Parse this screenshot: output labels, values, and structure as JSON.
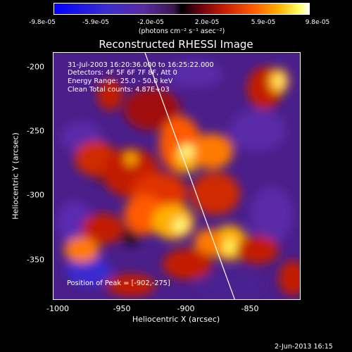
{
  "colorbar": {
    "ticks": [
      "-9.8e-05",
      "-5.9e-05",
      "-2.0e-05",
      "2.0e-05",
      "5.9e-05",
      "9.8e-05"
    ],
    "units": "(photons cm⁻² s⁻¹ asec⁻²)"
  },
  "plot": {
    "title": "Reconstructed RHESSI Image",
    "xlabel": "Heliocentric X (arcsec)",
    "ylabel": "Heliocentric Y (arcsec)",
    "xticks": [
      "-1000",
      "-950",
      "-900",
      "-850"
    ],
    "yticks": [
      "-200",
      "-250",
      "-300",
      "-350"
    ],
    "info": [
      "31-Jul-2003 16:20:36.000 to 16:25:22.000",
      "Detectors: 4F 5F 6F 7F 8F, Att 0",
      "Energy Range: 25.0 - 50.0 keV",
      "Clean    Total counts: 4.87E+03"
    ],
    "peak": "Position of Peak = [-902,-275]"
  },
  "footer": {
    "date": "2-Jun-2013 16:15"
  }
}
